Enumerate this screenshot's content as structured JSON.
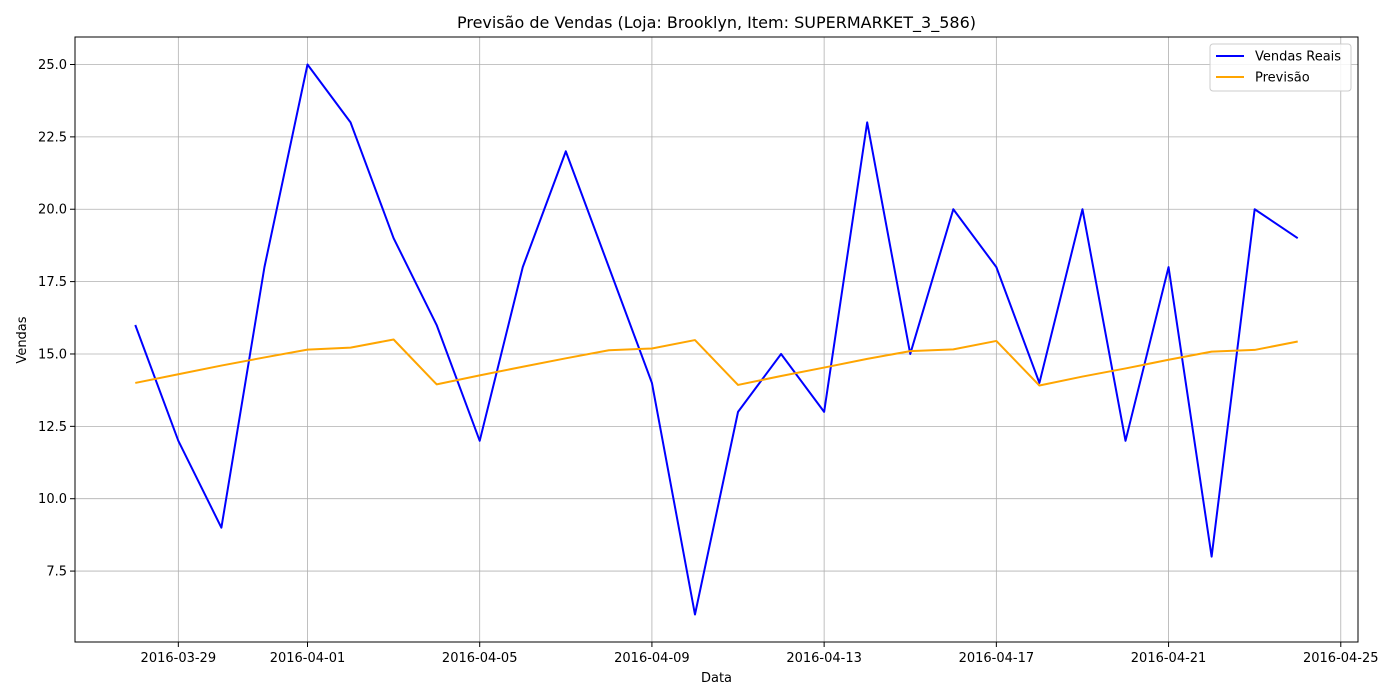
{
  "chart_data": {
    "type": "line",
    "title": "Previsão de Vendas (Loja: Brooklyn, Item: SUPERMARKET_3_586)",
    "xlabel": "Data",
    "ylabel": "Vendas",
    "x": [
      "2016-03-28",
      "2016-03-29",
      "2016-03-30",
      "2016-03-31",
      "2016-04-01",
      "2016-04-02",
      "2016-04-03",
      "2016-04-04",
      "2016-04-05",
      "2016-04-06",
      "2016-04-07",
      "2016-04-08",
      "2016-04-09",
      "2016-04-10",
      "2016-04-11",
      "2016-04-12",
      "2016-04-13",
      "2016-04-14",
      "2016-04-15",
      "2016-04-16",
      "2016-04-17",
      "2016-04-18",
      "2016-04-19",
      "2016-04-20",
      "2016-04-21",
      "2016-04-22",
      "2016-04-23",
      "2016-04-24"
    ],
    "series": [
      {
        "name": "Vendas Reais",
        "color": "#0000ff",
        "values": [
          16,
          12,
          9,
          18,
          25,
          23,
          19,
          16,
          12,
          18,
          22,
          18,
          14,
          6,
          13,
          15,
          13,
          23,
          15,
          20,
          18,
          14,
          20,
          12,
          18,
          8,
          20,
          19
        ]
      },
      {
        "name": "Previsão",
        "color": "#ffa500",
        "values": [
          14.0,
          14.3,
          14.6,
          14.88,
          15.15,
          15.22,
          15.5,
          13.95,
          14.26,
          14.56,
          14.85,
          15.13,
          15.19,
          15.48,
          13.93,
          14.24,
          14.53,
          14.83,
          15.1,
          15.16,
          15.45,
          13.91,
          14.22,
          14.5,
          14.8,
          15.08,
          15.14,
          15.43
        ]
      }
    ],
    "xticks": [
      "2016-03-29",
      "2016-04-01",
      "2016-04-05",
      "2016-04-09",
      "2016-04-13",
      "2016-04-17",
      "2016-04-21",
      "2016-04-25"
    ],
    "yticks": [
      7.5,
      10.0,
      12.5,
      15.0,
      17.5,
      20.0,
      22.5,
      25.0
    ],
    "xlim": [
      "2016-03-26T14:24",
      "2016-04-25T09:36"
    ],
    "ylim": [
      5.05,
      25.95
    ],
    "grid": true,
    "legend_position": "top-right"
  }
}
